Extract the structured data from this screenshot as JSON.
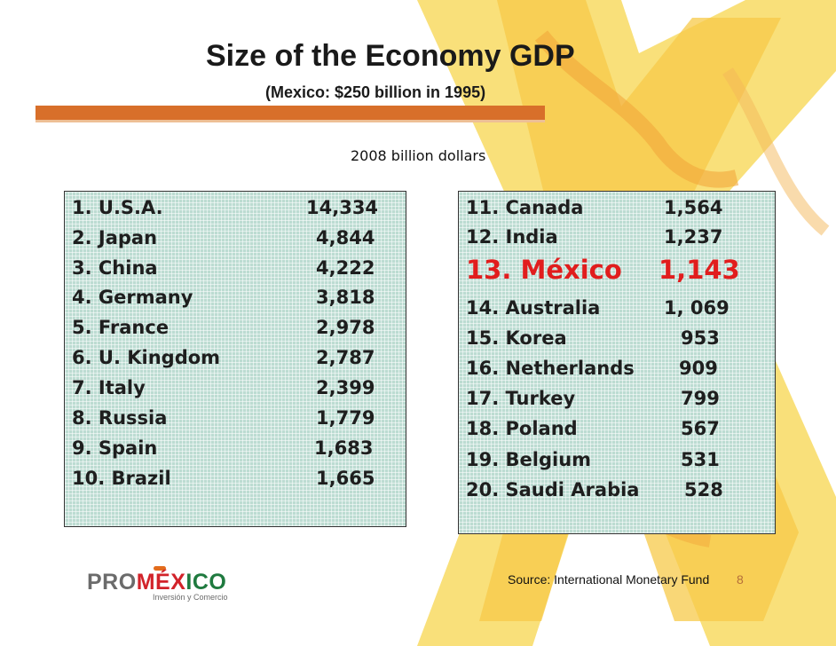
{
  "slide": {
    "title": "Size of the Economy GDP",
    "subtitle": "(Mexico: $250 billion in 1995)",
    "unit_label": "2008 billion dollars",
    "source": "Source: International Monetary Fund",
    "page_number": "8"
  },
  "logo": {
    "pro": "PRO",
    "mex": "MÉX",
    "ico": "ICO",
    "tagline": "Inversión y Comercio"
  },
  "left_list": [
    {
      "rank_country": "1. U.S.A.",
      "value": "14,334"
    },
    {
      "rank_country": "2. Japan",
      "value": "4,844"
    },
    {
      "rank_country": "3. China",
      "value": "4,222"
    },
    {
      "rank_country": "4. Germany",
      "value": "3,818"
    },
    {
      "rank_country": "5. France",
      "value": "2,978"
    },
    {
      "rank_country": "6. U. Kingdom",
      "value": "2,787"
    },
    {
      "rank_country": "7. Italy",
      "value": "2,399"
    },
    {
      "rank_country": "8. Russia",
      "value": "1,779"
    },
    {
      "rank_country": "9. Spain",
      "value": "1,683"
    },
    {
      "rank_country": "10. Brazil",
      "value": "1,665"
    }
  ],
  "right_list": [
    {
      "rank_country": "11. Canada",
      "value": "1,564"
    },
    {
      "rank_country": "12. India",
      "value": "1,237"
    },
    {
      "rank_country": "13. México",
      "value": "1,143",
      "highlight": true
    },
    {
      "rank_country": "14. Australia",
      "value": "1, 069"
    },
    {
      "rank_country": "15. Korea",
      "value": "953"
    },
    {
      "rank_country": "16. Netherlands",
      "value": "909"
    },
    {
      "rank_country": "17. Turkey",
      "value": "799"
    },
    {
      "rank_country": "18. Poland",
      "value": "567"
    },
    {
      "rank_country": "19. Belgium",
      "value": "531"
    },
    {
      "rank_country": "20. Saudi Arabia",
      "value": "528"
    }
  ],
  "colors": {
    "accent_bar": "#d86f2a",
    "box_fill": "#bcdcd2",
    "highlight": "#e11d1d",
    "decor_yellow": "#f7d55c",
    "decor_orange": "#f2a73b"
  }
}
